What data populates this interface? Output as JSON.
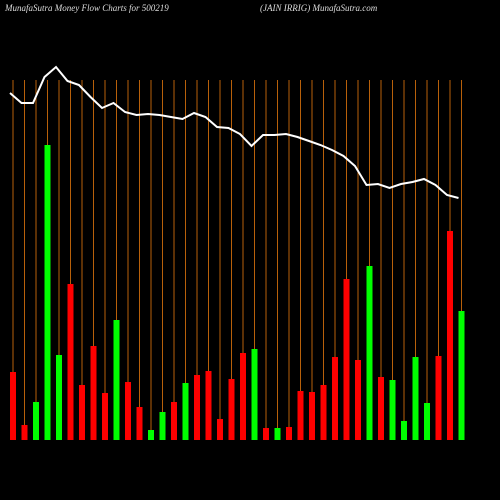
{
  "chart_data": {
    "type": "bar",
    "title": "MunafaSutra  Money Flow  Charts for 500219",
    "subtitle": "(JAIN  IRRIG) MunafaSutra.com",
    "values": [
      68,
      15,
      38,
      295,
      85,
      156,
      55,
      94,
      47,
      120,
      58,
      33,
      10,
      28,
      38,
      57,
      65,
      69,
      21,
      61,
      87,
      91,
      12,
      12,
      13,
      49,
      48,
      55,
      83,
      161,
      80,
      174,
      63,
      60,
      19,
      83,
      37,
      84,
      209,
      129
    ],
    "colors": [
      "#ff0000",
      "#ff0000",
      "#00ff00",
      "#00ff00",
      "#00ff00",
      "#ff0000",
      "#ff0000",
      "#ff0000",
      "#ff0000",
      "#00ff00",
      "#ff0000",
      "#ff0000",
      "#00ff00",
      "#00ff00",
      "#ff0000",
      "#00ff00",
      "#ff0000",
      "#ff0000",
      "#ff0000",
      "#ff0000",
      "#ff0000",
      "#00ff00",
      "#ff0000",
      "#00ff00",
      "#ff0000",
      "#ff0000",
      "#ff0000",
      "#ff0000",
      "#ff0000",
      "#ff0000",
      "#ff0000",
      "#00ff00",
      "#ff0000",
      "#00ff00",
      "#00ff00",
      "#00ff00",
      "#00ff00",
      "#ff0000",
      "#ff0000",
      "#00ff00"
    ],
    "line": {
      "color": "#ffffff",
      "values": [
        347,
        337,
        337,
        363,
        373,
        359,
        355,
        343,
        332,
        337,
        328,
        325,
        326,
        325,
        323,
        321,
        327,
        323,
        313,
        312,
        306,
        294,
        305,
        305,
        306,
        303,
        299,
        295,
        290,
        284,
        274,
        255,
        256,
        252,
        256,
        258,
        261,
        255,
        245,
        242
      ]
    },
    "ylim": [
      0,
      440
    ],
    "grid_color": "#b8600a"
  }
}
